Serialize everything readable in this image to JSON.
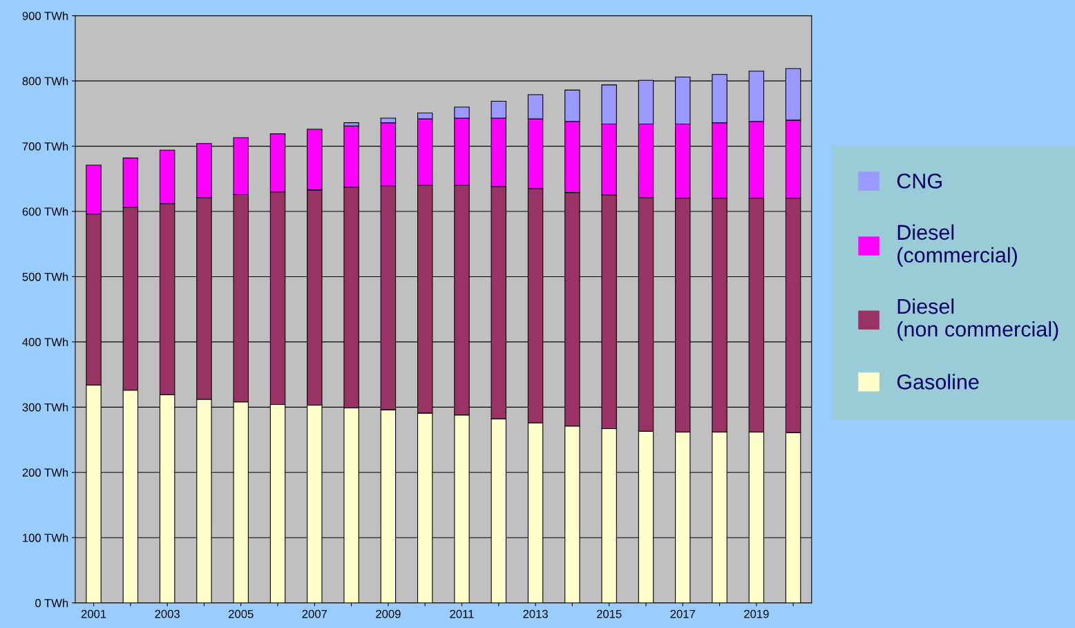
{
  "chart_data": {
    "type": "bar",
    "stacked": true,
    "categories": [
      "2001",
      null,
      "2003",
      null,
      "2005",
      null,
      "2007",
      null,
      "2009",
      null,
      "2011",
      null,
      "2013",
      null,
      "2015",
      null,
      "2017",
      null,
      "2019",
      null
    ],
    "series": [
      {
        "name": "Gasoline",
        "color": "#ffffcc",
        "values": [
          334,
          326,
          319,
          312,
          308,
          304,
          303,
          299,
          296,
          291,
          288,
          282,
          276,
          271,
          267,
          263,
          262,
          262,
          262,
          261
        ]
      },
      {
        "name": "Diesel\n(non commercial)",
        "color": "#993366",
        "values": [
          262,
          280,
          293,
          309,
          318,
          326,
          330,
          338,
          343,
          349,
          352,
          356,
          359,
          358,
          358,
          358,
          358,
          358,
          358,
          359
        ]
      },
      {
        "name": "Diesel\n(commercial)",
        "color": "#ff00ff",
        "values": [
          75,
          76,
          82,
          83,
          87,
          89,
          93,
          94,
          97,
          102,
          103,
          105,
          107,
          109,
          109,
          113,
          114,
          116,
          118,
          120
        ]
      },
      {
        "name": "CNG",
        "color": "#9999ff",
        "values": [
          null,
          null,
          null,
          null,
          null,
          null,
          null,
          5,
          7,
          9,
          17,
          26,
          37,
          48,
          60,
          67,
          72,
          74,
          77,
          79
        ]
      }
    ],
    "ylim": [
      0,
      900
    ],
    "yticks": [
      {
        "value": 0,
        "label": "0 TWh"
      },
      {
        "value": 100,
        "label": "100 TWh"
      },
      {
        "value": 200,
        "label": "200 TWh"
      },
      {
        "value": 300,
        "label": "300 TWh"
      },
      {
        "value": 400,
        "label": "400 TWh"
      },
      {
        "value": 500,
        "label": "500 TWh"
      },
      {
        "value": 600,
        "label": "600 TWh"
      },
      {
        "value": 700,
        "label": "700 TWh"
      },
      {
        "value": 800,
        "label": "800 TWh"
      },
      {
        "value": 900,
        "label": "900 TWh"
      }
    ],
    "grid": "y",
    "legend": "right"
  }
}
